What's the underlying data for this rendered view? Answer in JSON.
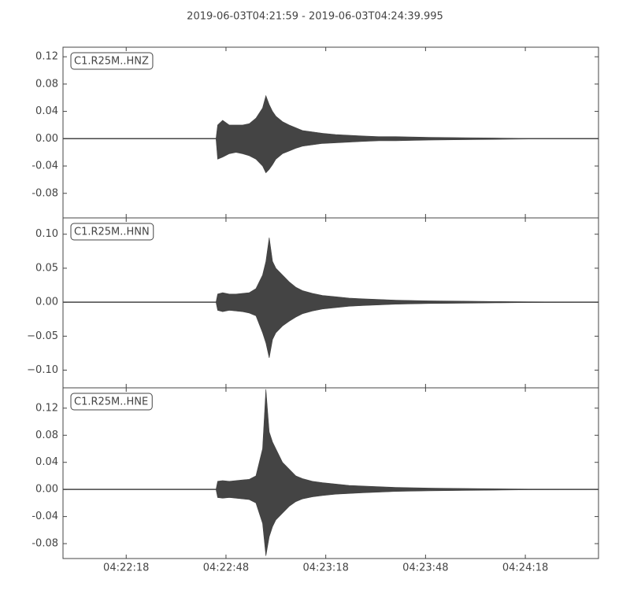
{
  "chart_data": [
    {
      "type": "area",
      "title": "2019-06-03T04:21:59  -  2019-06-03T04:24:39.995",
      "label": "C1.R25M..HNZ",
      "xlim": [
        0,
        161
      ],
      "ylim": [
        -0.116,
        0.134
      ],
      "yticks": [
        -0.08,
        -0.04,
        {
          "value": 0,
          "label": "0.00"
        },
        0.04,
        0.08,
        0.12
      ],
      "x": [
        0,
        46,
        46.5,
        48,
        50,
        52,
        54,
        56,
        58,
        60,
        61,
        62,
        63,
        64,
        66,
        68,
        70,
        72,
        75,
        78,
        82,
        86,
        90,
        95,
        100,
        110,
        120,
        130,
        140,
        161
      ],
      "series": [
        {
          "color": "#444444",
          "values": [
            0,
            0,
            0.02,
            0.027,
            0.02,
            0.02,
            0.02,
            0.022,
            0.03,
            0.045,
            0.063,
            0.05,
            0.04,
            0.033,
            0.025,
            0.02,
            0.016,
            0.012,
            0.01,
            0.008,
            0.006,
            0.005,
            0.004,
            0.003,
            0.003,
            0.002,
            0.0015,
            0.001,
            0.0005,
            0
          ]
        },
        {
          "color": "#444444",
          "values": [
            0,
            0,
            -0.03,
            -0.027,
            -0.022,
            -0.02,
            -0.022,
            -0.025,
            -0.03,
            -0.04,
            -0.05,
            -0.045,
            -0.038,
            -0.03,
            -0.022,
            -0.018,
            -0.014,
            -0.011,
            -0.009,
            -0.007,
            -0.006,
            -0.005,
            -0.004,
            -0.003,
            -0.003,
            -0.002,
            -0.0015,
            -0.001,
            -0.0005,
            0
          ]
        }
      ]
    },
    {
      "type": "area",
      "label": "C1.R25M..HNN",
      "xlim": [
        0,
        161
      ],
      "ylim": [
        -0.126,
        0.124
      ],
      "yticks": [
        {
          "value": -0.1,
          "label": "−0.10"
        },
        {
          "value": -0.05,
          "label": "−0.05"
        },
        {
          "value": 0,
          "label": "0.00"
        },
        0.05,
        {
          "value": 0.1,
          "label": "0.10"
        }
      ],
      "x": [
        0,
        46,
        46.5,
        48,
        50,
        52,
        54,
        56,
        58,
        60,
        61,
        62,
        63,
        64,
        66,
        68,
        70,
        72,
        75,
        78,
        82,
        86,
        90,
        95,
        100,
        110,
        120,
        130,
        140,
        161
      ],
      "series": [
        {
          "color": "#444444",
          "values": [
            0,
            0,
            0.012,
            0.014,
            0.012,
            0.012,
            0.013,
            0.014,
            0.02,
            0.04,
            0.06,
            0.095,
            0.06,
            0.05,
            0.04,
            0.03,
            0.022,
            0.017,
            0.013,
            0.01,
            0.008,
            0.006,
            0.005,
            0.004,
            0.003,
            0.002,
            0.0015,
            0.001,
            0.0005,
            0
          ]
        },
        {
          "color": "#444444",
          "values": [
            0,
            0,
            -0.012,
            -0.014,
            -0.012,
            -0.013,
            -0.014,
            -0.016,
            -0.02,
            -0.045,
            -0.06,
            -0.082,
            -0.055,
            -0.045,
            -0.035,
            -0.028,
            -0.022,
            -0.017,
            -0.013,
            -0.01,
            -0.008,
            -0.006,
            -0.005,
            -0.004,
            -0.003,
            -0.002,
            -0.0015,
            -0.001,
            -0.0005,
            0
          ]
        }
      ]
    },
    {
      "type": "area",
      "label": "C1.R25M..HNE",
      "xlim": [
        0,
        161
      ],
      "ylim": [
        -0.102,
        0.15
      ],
      "yticks": [
        -0.08,
        -0.04,
        {
          "value": 0,
          "label": "0.00"
        },
        0.04,
        0.08,
        0.12
      ],
      "xticks": [
        {
          "value": 19,
          "label": "04:22:18"
        },
        {
          "value": 49,
          "label": "04:22:48"
        },
        {
          "value": 79,
          "label": "04:23:18"
        },
        {
          "value": 109,
          "label": "04:23:48"
        },
        {
          "value": 139,
          "label": "04:24:18"
        }
      ],
      "x": [
        0,
        46,
        46.5,
        48,
        50,
        52,
        54,
        56,
        58,
        60,
        61,
        62,
        63,
        64,
        66,
        68,
        70,
        72,
        75,
        78,
        82,
        86,
        90,
        95,
        100,
        110,
        120,
        130,
        140,
        161
      ],
      "series": [
        {
          "color": "#444444",
          "values": [
            0,
            0,
            0.012,
            0.013,
            0.012,
            0.013,
            0.014,
            0.015,
            0.02,
            0.06,
            0.148,
            0.085,
            0.07,
            0.06,
            0.04,
            0.03,
            0.02,
            0.016,
            0.012,
            0.01,
            0.008,
            0.006,
            0.005,
            0.004,
            0.003,
            0.002,
            0.0015,
            0.001,
            0.0005,
            0
          ]
        },
        {
          "color": "#444444",
          "values": [
            0,
            0,
            -0.012,
            -0.013,
            -0.012,
            -0.013,
            -0.014,
            -0.015,
            -0.02,
            -0.05,
            -0.098,
            -0.07,
            -0.055,
            -0.045,
            -0.035,
            -0.025,
            -0.018,
            -0.014,
            -0.011,
            -0.009,
            -0.007,
            -0.006,
            -0.005,
            -0.004,
            -0.003,
            -0.002,
            -0.0015,
            -0.001,
            -0.0005,
            0
          ]
        }
      ]
    }
  ]
}
